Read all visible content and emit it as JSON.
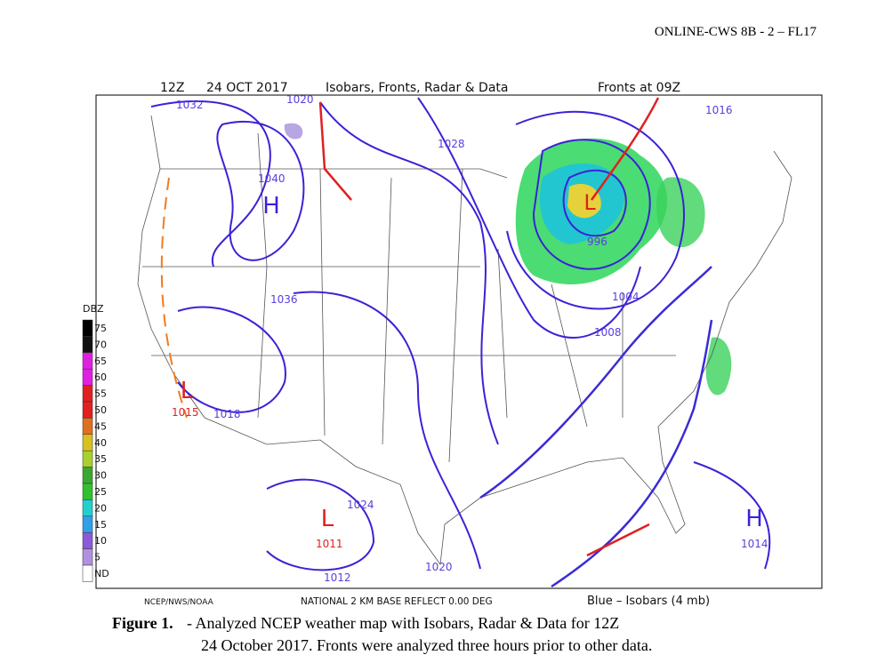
{
  "header": {
    "course": "ONLINE-CWS 8B - 2 – FL17"
  },
  "map": {
    "time": "12Z",
    "date": "24 OCT 2017",
    "title": "Isobars, Fronts, Radar & Data",
    "fronts_time": "Fronts at 09Z",
    "legend_title": "DBZ",
    "legend": [
      "75",
      "70",
      "65",
      "60",
      "55",
      "50",
      "45",
      "40",
      "35",
      "30",
      "25",
      "20",
      "15",
      "10",
      "5",
      "ND"
    ],
    "credit": "NCEP/NWS/NOAA",
    "product": "NATIONAL 2 KM BASE REFLECT 0.00 DEG",
    "isobar_note": "Blue – Isobars (4 mb)",
    "centers": [
      {
        "letter": "H",
        "pressure": "1040"
      },
      {
        "letter": "L",
        "pressure": "1015"
      },
      {
        "letter": "L",
        "pressure": "1011"
      },
      {
        "letter": "H",
        "pressure": "1014"
      },
      {
        "letter": "L",
        "pressure": "996"
      }
    ],
    "isobar_labels": [
      "1032",
      "1020",
      "1028",
      "1016",
      "1012",
      "1020",
      "1036",
      "1024",
      "1018",
      "1008",
      "1004"
    ]
  },
  "caption": {
    "label": "Figure 1.",
    "line1": "- Analyzed NCEP weather map with Isobars, Radar & Data for 12Z",
    "line2": "24 October 2017. Fronts were analyzed three hours prior to other data."
  }
}
